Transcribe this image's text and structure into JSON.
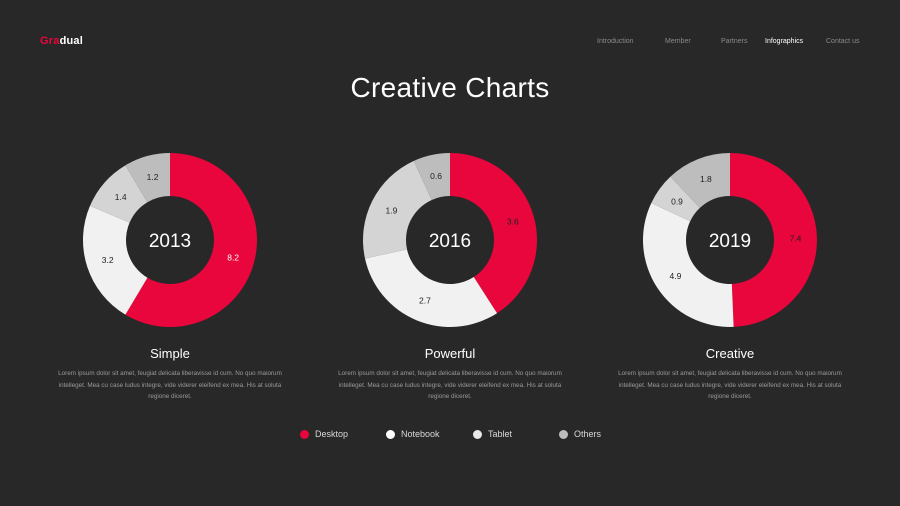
{
  "logo": {
    "part1": "Gra",
    "part2": "dual"
  },
  "nav": [
    {
      "label": "Introduction",
      "active": false
    },
    {
      "label": "Member",
      "active": false
    },
    {
      "label": "Partners",
      "active": false
    },
    {
      "label": "Infographics",
      "active": true
    },
    {
      "label": "Contact us",
      "active": false
    }
  ],
  "title": "Creative Charts",
  "colors": {
    "Desktop": "#e8063c",
    "Notebook": "#ffffff",
    "Tablet": "#e9e9e9",
    "Others": "#bdbdbd"
  },
  "chart_data": [
    {
      "type": "pie",
      "center_label": "2013",
      "categories": [
        "Desktop",
        "Tablet",
        "Notebook",
        "Others"
      ],
      "values": [
        8.2,
        3.2,
        1.4,
        1.2
      ],
      "segment_colors": [
        "#e8063c",
        "#f1f1f1",
        "#d4d4d4",
        "#bdbdbd"
      ],
      "label_colors": [
        "#ffffff",
        "#222222",
        "#222222",
        "#222222"
      ],
      "title": "Simple",
      "description": "Lorem ipsum dolor sit amet, feugiat delicata liberavisse id cum. No quo maiorum intelleget. Mea cu case ludus integre, vide viderer eleifend ex mea. His at soluta regione diceret."
    },
    {
      "type": "pie",
      "center_label": "2016",
      "categories": [
        "Desktop",
        "Tablet",
        "Notebook",
        "Others"
      ],
      "values": [
        3.6,
        2.7,
        1.9,
        0.6
      ],
      "segment_colors": [
        "#e8063c",
        "#f1f1f1",
        "#d4d4d4",
        "#bdbdbd"
      ],
      "label_colors": [
        "#222222",
        "#222222",
        "#222222",
        "#222222"
      ],
      "title": "Powerful",
      "description": "Lorem ipsum dolor sit amet, feugiat delicata liberavisse id cum. No quo maiorum intelleget. Mea cu case ludus integre, vide viderer eleifend ex mea. His at soluta regione diceret."
    },
    {
      "type": "pie",
      "center_label": "2019",
      "categories": [
        "Desktop",
        "Tablet",
        "Notebook",
        "Others"
      ],
      "values": [
        7.4,
        4.9,
        0.9,
        1.8
      ],
      "segment_colors": [
        "#e8063c",
        "#f1f1f1",
        "#d4d4d4",
        "#bdbdbd"
      ],
      "label_colors": [
        "#222222",
        "#222222",
        "#222222",
        "#222222"
      ],
      "title": "Creative",
      "description": "Lorem ipsum dolor sit amet, feugiat delicata liberavisse id cum. No quo maiorum intelleget. Mea cu case ludus integre, vide viderer eleifend ex mea. His at soluta regione diceret."
    }
  ],
  "legend": [
    {
      "label": "Desktop",
      "color": "#e8063c"
    },
    {
      "label": "Notebook",
      "color": "#ffffff"
    },
    {
      "label": "Tablet",
      "color": "#e9e9e9"
    },
    {
      "label": "Others",
      "color": "#bdbdbd"
    }
  ]
}
